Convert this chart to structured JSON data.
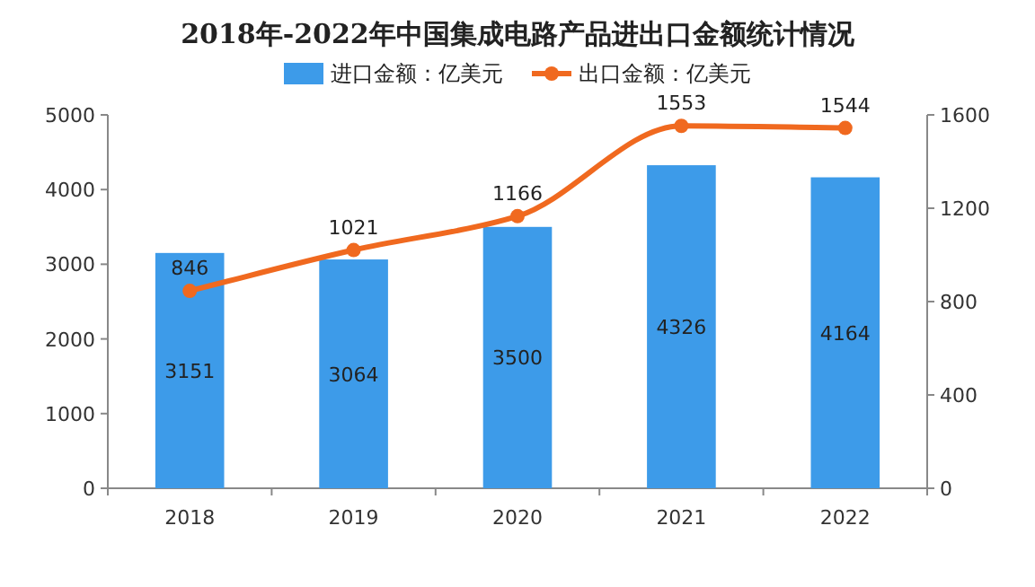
{
  "chart_data": {
    "type": "bar",
    "title": "2018年-2022年中国集成电路产品进出口金额统计情况",
    "categories": [
      "2018",
      "2019",
      "2020",
      "2021",
      "2022"
    ],
    "series": [
      {
        "name": "进口金额：亿美元",
        "color": "#3d9be9",
        "values": [
          3151,
          3064,
          3500,
          4326,
          4164
        ]
      },
      {
        "name": "出口金额：亿美元",
        "color": "#f0691f",
        "values": [
          846,
          1021,
          1166,
          1553,
          1544
        ],
        "type": "line",
        "axis": "y2"
      }
    ],
    "ylim": [
      0,
      5000
    ],
    "yticks": [
      0,
      1000,
      2000,
      3000,
      4000,
      5000
    ],
    "y2lim": [
      0,
      1600
    ],
    "y2ticks": [
      0,
      400,
      800,
      1200,
      1600
    ],
    "legend": "top",
    "data_labels": true,
    "marker": "circle"
  }
}
